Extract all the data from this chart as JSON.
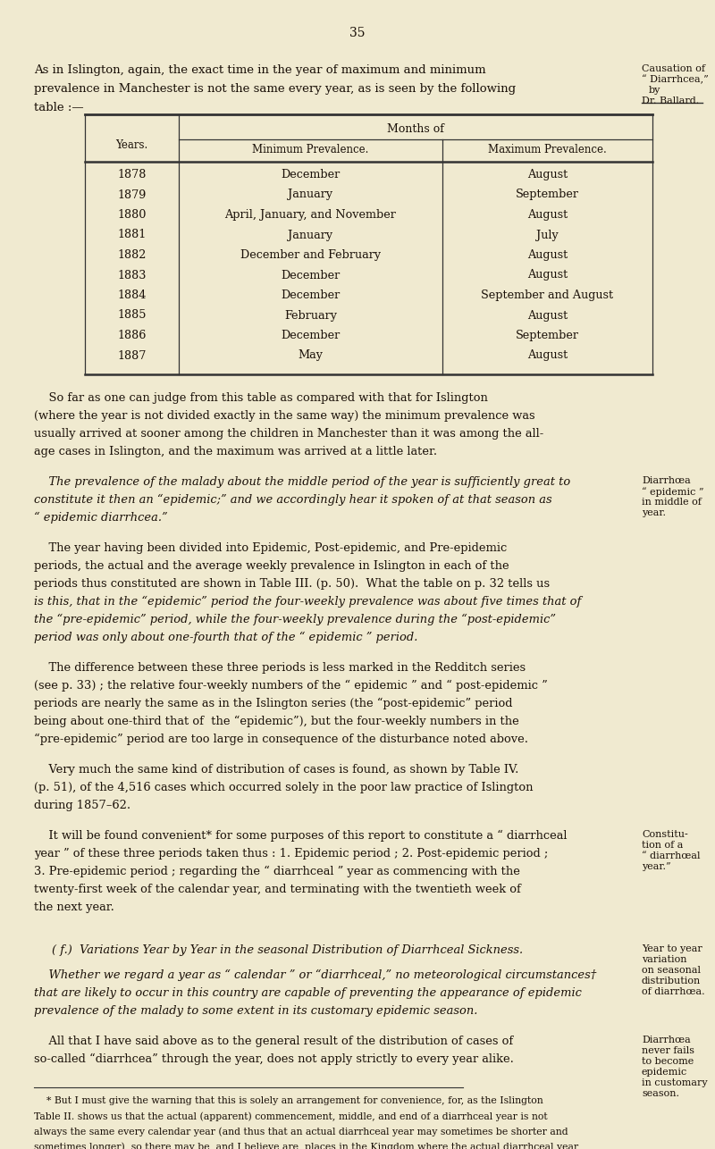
{
  "bg_color": "#f0ead0",
  "page_number": "35",
  "table_years": [
    "1878",
    "1879",
    "1880",
    "1881",
    "1882",
    "1883",
    "1884",
    "1885",
    "1886",
    "1887"
  ],
  "table_min": [
    "December",
    "January",
    "April, January, and November",
    "January",
    "December and February",
    "December",
    "December",
    "February",
    "December",
    "May"
  ],
  "table_max": [
    "August",
    "September",
    "August",
    "July",
    "August",
    "August",
    "September and August",
    "August",
    "September",
    "August"
  ]
}
